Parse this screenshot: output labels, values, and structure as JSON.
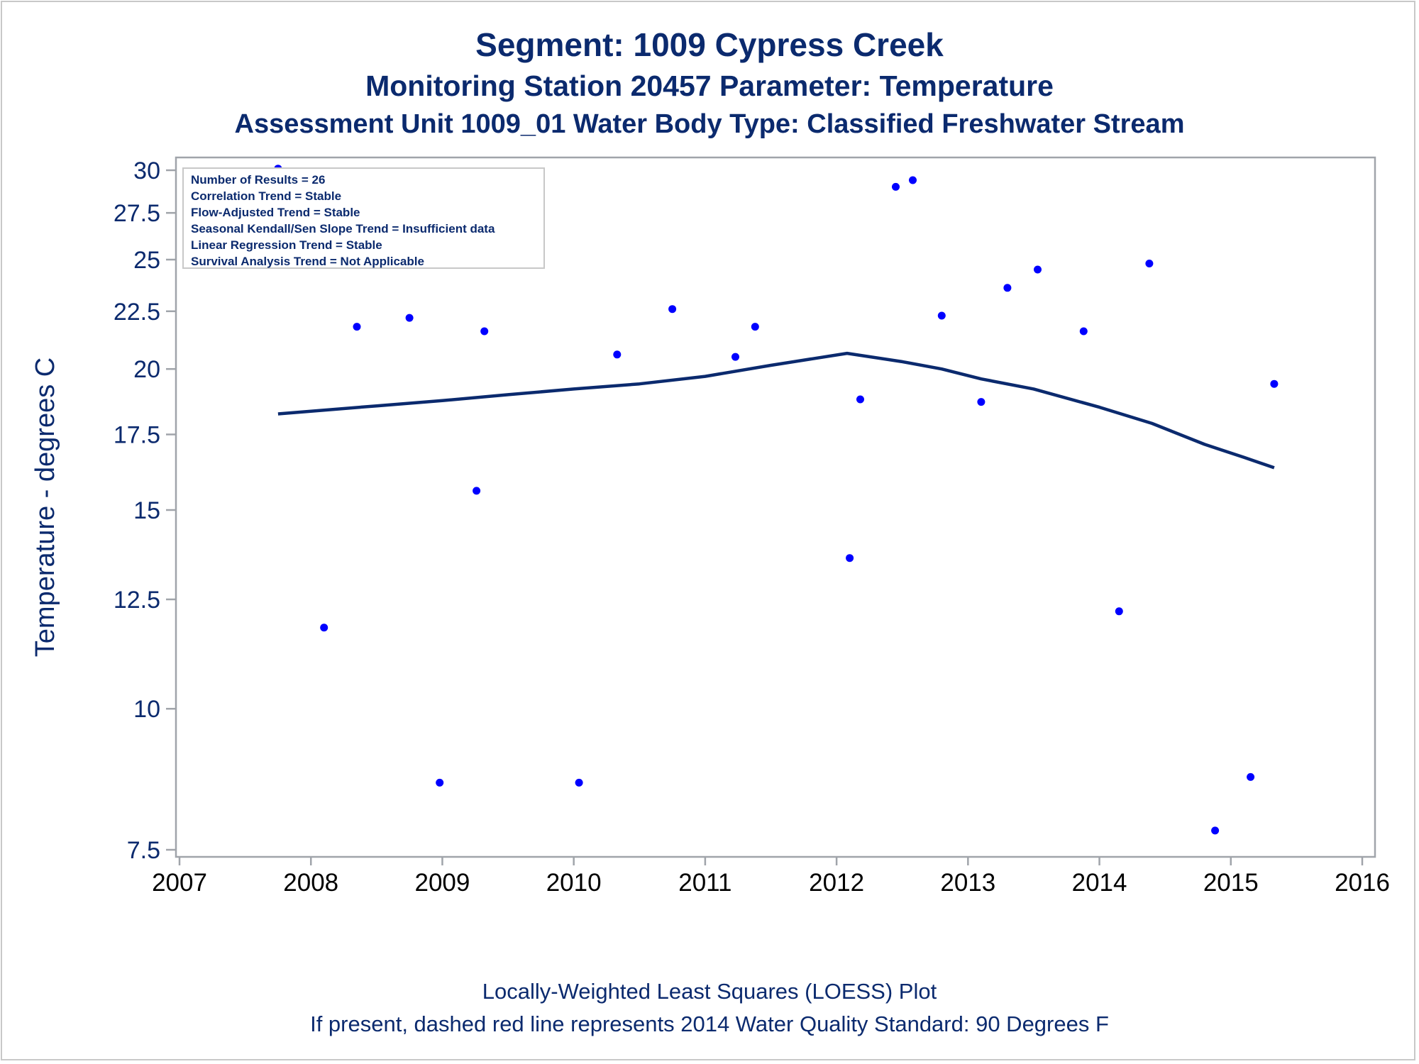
{
  "titles": {
    "line1": "Segment: 1009  Cypress Creek",
    "line2": "Monitoring Station 20457 Parameter: Temperature",
    "line3": "Assessment Unit 1009_01   Water Body Type: Classified Freshwater Stream"
  },
  "footnotes": {
    "line1": "Locally-Weighted Least Squares (LOESS) Plot",
    "line2": "If present, dashed red line represents 2014 Water Quality Standard: 90   Degrees F"
  },
  "stats_box": [
    "Number of Results = 26",
    "Correlation Trend = Stable",
    "Flow-Adjusted Trend = Stable",
    "Seasonal Kendall/Sen Slope Trend = Insufficient data",
    "Linear Regression Trend = Stable",
    "Survival Analysis Trend = Not Applicable"
  ],
  "colors": {
    "points": "#0000ff",
    "loess_line": "#0b2a6e",
    "text": "#0b2a6e",
    "axis": "#a0a4aa"
  },
  "chart_data": {
    "type": "scatter",
    "ylabel": "Temperature - degrees C",
    "xlabel": "",
    "xlim": [
      2007,
      2016
    ],
    "ylim": [
      7.5,
      30
    ],
    "y_scale": "log",
    "x_ticks": [
      "2007",
      "2008",
      "2009",
      "2010",
      "2011",
      "2012",
      "2013",
      "2014",
      "2015",
      "2016"
    ],
    "y_ticks": [
      "7.5",
      "10",
      "12.5",
      "15",
      "17.5",
      "20",
      "22.5",
      "25",
      "27.5",
      "30"
    ],
    "grid": false,
    "legend_position": "top-left",
    "series": [
      {
        "type": "scatter",
        "points": [
          [
            2007.75,
            30.1
          ],
          [
            2008.1,
            11.8
          ],
          [
            2008.35,
            21.8
          ],
          [
            2008.75,
            22.2
          ],
          [
            2008.98,
            8.6
          ],
          [
            2009.26,
            15.6
          ],
          [
            2009.32,
            21.6
          ],
          [
            2010.04,
            8.6
          ],
          [
            2010.33,
            20.6
          ],
          [
            2010.75,
            22.6
          ],
          [
            2011.23,
            20.5
          ],
          [
            2011.38,
            21.8
          ],
          [
            2012.1,
            13.6
          ],
          [
            2012.18,
            18.8
          ],
          [
            2012.45,
            29.0
          ],
          [
            2012.58,
            29.4
          ],
          [
            2012.8,
            22.3
          ],
          [
            2013.1,
            18.7
          ],
          [
            2013.3,
            23.6
          ],
          [
            2013.53,
            24.5
          ],
          [
            2013.88,
            21.6
          ],
          [
            2014.15,
            12.2
          ],
          [
            2014.38,
            24.8
          ],
          [
            2014.88,
            7.8
          ],
          [
            2015.15,
            8.7
          ],
          [
            2015.33,
            19.4
          ]
        ]
      },
      {
        "type": "line",
        "points": [
          [
            2007.75,
            18.25
          ],
          [
            2008.5,
            18.55
          ],
          [
            2009.0,
            18.75
          ],
          [
            2009.5,
            18.98
          ],
          [
            2010.0,
            19.2
          ],
          [
            2010.5,
            19.4
          ],
          [
            2011.0,
            19.7
          ],
          [
            2011.5,
            20.15
          ],
          [
            2012.08,
            20.65
          ],
          [
            2012.5,
            20.3
          ],
          [
            2012.8,
            20.0
          ],
          [
            2013.1,
            19.6
          ],
          [
            2013.5,
            19.2
          ],
          [
            2014.0,
            18.5
          ],
          [
            2014.4,
            17.9
          ],
          [
            2014.8,
            17.15
          ],
          [
            2015.1,
            16.7
          ],
          [
            2015.33,
            16.35
          ]
        ]
      }
    ]
  }
}
